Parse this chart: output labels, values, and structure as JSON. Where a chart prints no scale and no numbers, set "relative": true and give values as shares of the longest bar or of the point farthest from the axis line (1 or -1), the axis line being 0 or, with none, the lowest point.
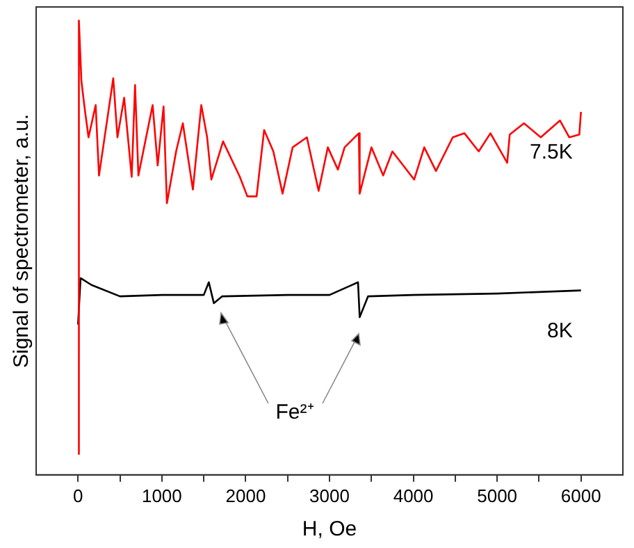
{
  "chart_data": {
    "type": "line",
    "relative": true,
    "xlabel": "H, Oe",
    "ylabel": "Signal of spectrometer, a.u.",
    "xlim": [
      -500,
      6500
    ],
    "xticks": [
      0,
      {
        "value": 500,
        "label": null
      },
      1000,
      {
        "value": 1500,
        "label": null
      },
      2000,
      {
        "value": 2500,
        "label": null
      },
      3000,
      {
        "value": 3500,
        "label": null
      },
      4000,
      {
        "value": 4500,
        "label": null
      },
      5000,
      {
        "value": 5500,
        "label": null
      },
      6000
    ],
    "grid": false,
    "legend": false,
    "marker": "none",
    "line_style": "solid",
    "annotations": [
      "Fe²⁺"
    ],
    "series": [
      {
        "name": "7.5K",
        "color": "#ff0000",
        "x": [
          0,
          10,
          40,
          80,
          125,
          210,
          250,
          420,
          470,
          550,
          640,
          680,
          720,
          890,
          950,
          1020,
          1060,
          1170,
          1250,
          1370,
          1470,
          1540,
          1590,
          1730,
          1930,
          2020,
          2130,
          2220,
          2330,
          2440,
          2560,
          2730,
          2870,
          2980,
          3100,
          3180,
          3350,
          3360,
          3500,
          3640,
          3750,
          4010,
          4130,
          4270,
          4470,
          4610,
          4780,
          4920,
          5120,
          5150,
          5320,
          5520,
          5750,
          5860,
          5980,
          6000
        ],
        "values": [
          0.046,
          1.0,
          0.867,
          0.805,
          0.743,
          0.814,
          0.659,
          0.873,
          0.743,
          0.83,
          0.656,
          0.858,
          0.659,
          0.814,
          0.681,
          0.811,
          0.598,
          0.712,
          0.774,
          0.628,
          0.814,
          0.743,
          0.65,
          0.734,
          0.656,
          0.613,
          0.613,
          0.759,
          0.712,
          0.619,
          0.721,
          0.743,
          0.625,
          0.721,
          0.672,
          0.721,
          0.752,
          0.619,
          0.721,
          0.659,
          0.712,
          0.65,
          0.721,
          0.669,
          0.743,
          0.752,
          0.712,
          0.752,
          0.687,
          0.749,
          0.774,
          0.743,
          0.78,
          0.743,
          0.749,
          0.799
        ]
      },
      {
        "name": "8K",
        "color": "#000000",
        "x": [
          0,
          30,
          160,
          500,
          1000,
          1500,
          1560,
          1620,
          1720,
          2500,
          3000,
          3340,
          3360,
          3460,
          4000,
          5000,
          6000
        ],
        "values": [
          0.331,
          0.433,
          0.418,
          0.393,
          0.396,
          0.396,
          0.424,
          0.378,
          0.393,
          0.396,
          0.396,
          0.424,
          0.347,
          0.393,
          0.396,
          0.399,
          0.406
        ]
      }
    ]
  }
}
